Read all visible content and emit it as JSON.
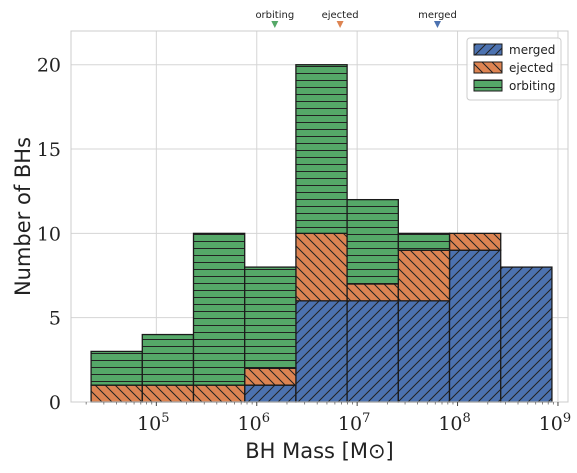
{
  "chart_data": {
    "type": "bar",
    "stacked": true,
    "xscale": "log",
    "xlabel": "BH Mass [M⊙]",
    "ylabel": "Number of BHs",
    "xlim_log10": [
      4.15,
      9.1
    ],
    "ylim": [
      0,
      22
    ],
    "yticks": [
      0,
      5,
      10,
      15,
      20
    ],
    "xticks_exponent": [
      5,
      6,
      7,
      8,
      9
    ],
    "xtick_base": "10",
    "grid": true,
    "legend_position": "top-right",
    "bin_edges_log10": [
      4.35,
      4.86,
      5.37,
      5.88,
      6.39,
      6.9,
      7.41,
      7.92,
      8.43,
      8.94
    ],
    "series": [
      {
        "name": "merged",
        "color": "#4c72b0",
        "hatch": "diagonal",
        "values": [
          0,
          0,
          0,
          1,
          6,
          6,
          6,
          9,
          8
        ]
      },
      {
        "name": "ejected",
        "color": "#dd8452",
        "hatch": "back-diagonal",
        "values": [
          1,
          1,
          1,
          1,
          4,
          1,
          3,
          1,
          0
        ]
      },
      {
        "name": "orbiting",
        "color": "#55a868",
        "hatch": "horizontal",
        "values": [
          2,
          3,
          9,
          6,
          10,
          5,
          1,
          0,
          0
        ]
      }
    ],
    "markers": [
      {
        "label": "orbiting",
        "x_log10": 6.18,
        "color": "#55a868"
      },
      {
        "label": "ejected",
        "x_log10": 6.83,
        "color": "#dd8452"
      },
      {
        "label": "merged",
        "x_log10": 7.8,
        "color": "#4c72b0"
      }
    ]
  }
}
